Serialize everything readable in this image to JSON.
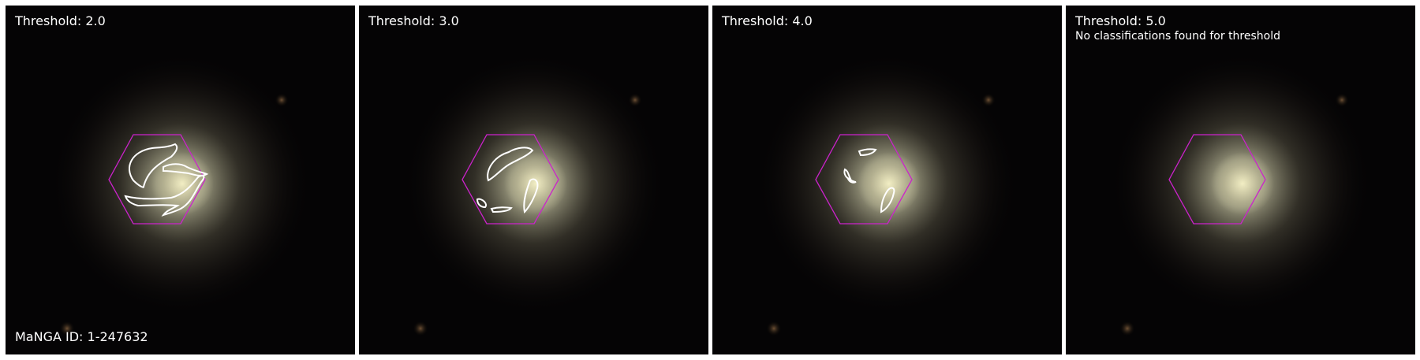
{
  "figure": {
    "manga_id_label": "MaNGA ID: 1-247632",
    "hexagon_color": "#cc22cc",
    "contour_color": "#ffffff",
    "panels": [
      {
        "title": "Threshold: 2.0",
        "contours": 3
      },
      {
        "title": "Threshold: 3.0",
        "contours": 4
      },
      {
        "title": "Threshold: 4.0",
        "contours": 4
      },
      {
        "title": "Threshold: 5.0",
        "note": "No classifications found for threshold",
        "contours": 0
      }
    ]
  }
}
